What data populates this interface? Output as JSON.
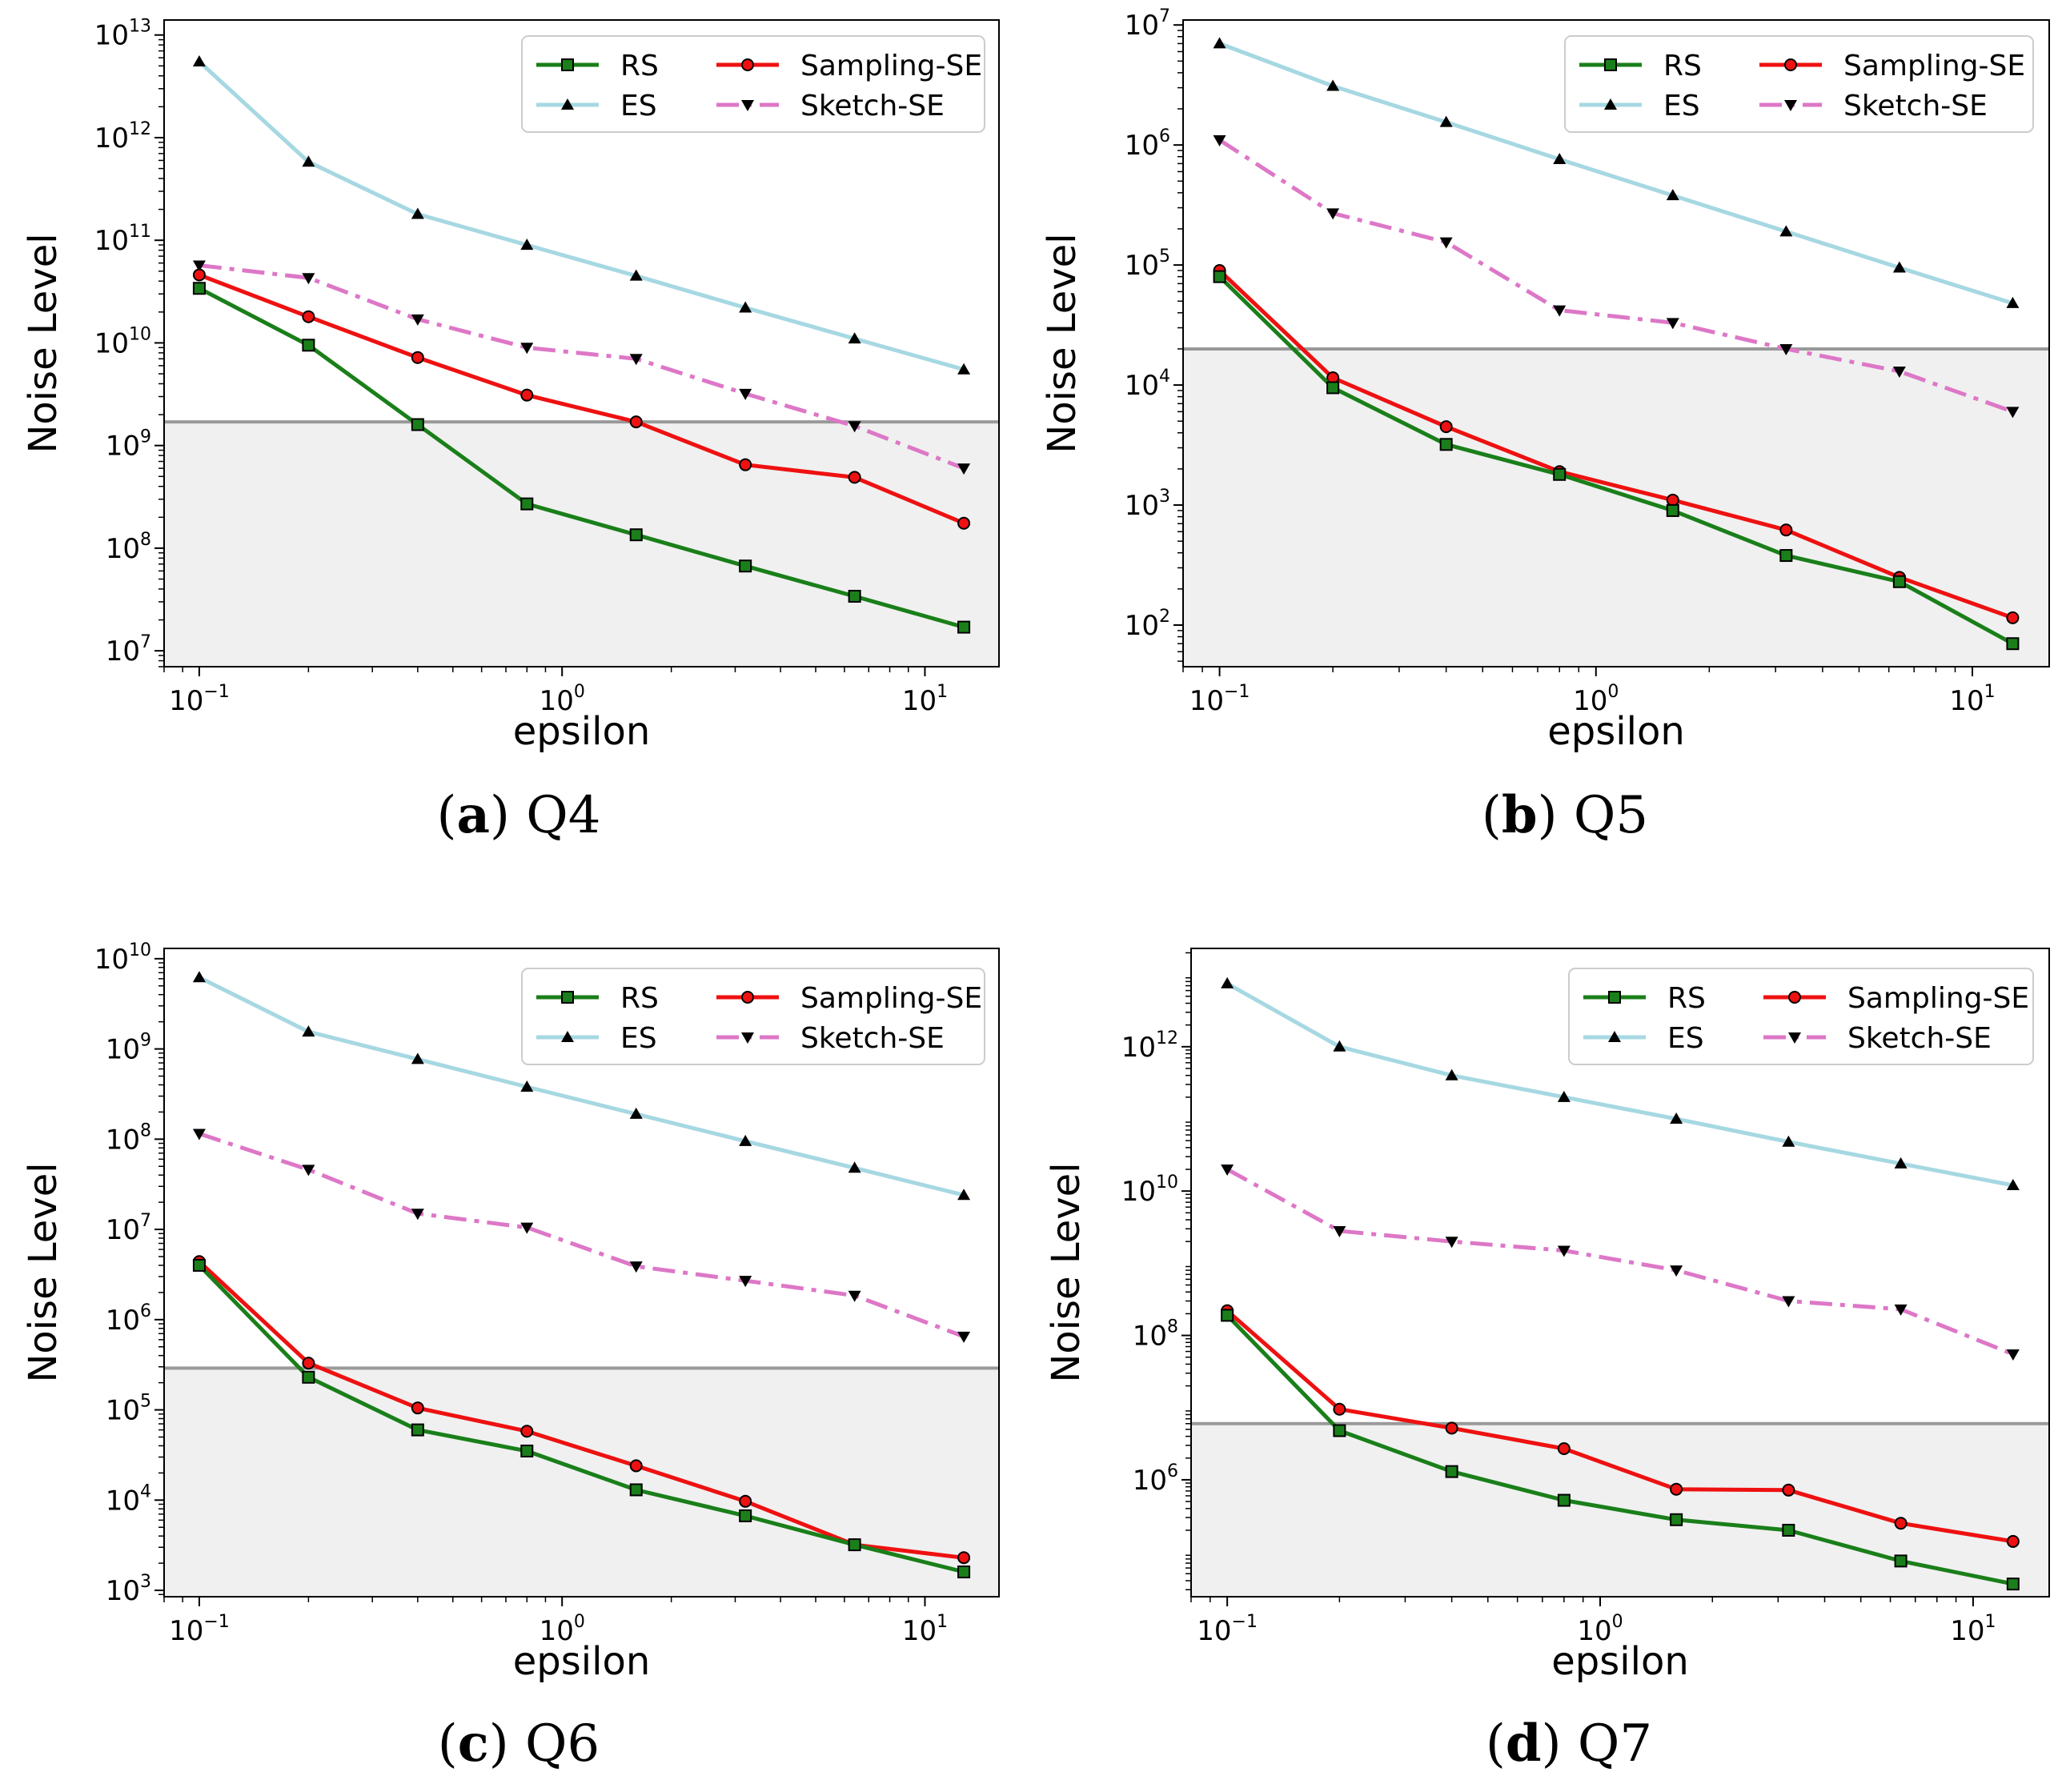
{
  "chart_data": [
    {
      "type": "line",
      "panel": "a",
      "caption_letter": "a",
      "caption_name": "Q4",
      "xlabel": "epsilon",
      "ylabel": "Noise Level",
      "xscale": "log",
      "yscale": "log",
      "xlim": [
        0.08,
        16
      ],
      "ylim": [
        7000000,
        14000000000000
      ],
      "xticks": [
        {
          "exp": "−1",
          "value": 0.1
        },
        {
          "exp": "0",
          "value": 1
        },
        {
          "exp": "1",
          "value": 10
        }
      ],
      "yticks": [
        {
          "exp": "7",
          "value": 10000000
        },
        {
          "exp": "8",
          "value": 100000000
        },
        {
          "exp": "9",
          "value": 1000000000
        },
        {
          "exp": "10",
          "value": 10000000000
        },
        {
          "exp": "11",
          "value": 100000000000
        },
        {
          "exp": "12",
          "value": 1000000000000
        },
        {
          "exp": "13",
          "value": 10000000000000
        }
      ],
      "threshold": 1700000000,
      "x": [
        0.1,
        0.2,
        0.4,
        0.8,
        1.6,
        3.2,
        6.4,
        12.8
      ],
      "series": [
        {
          "name": "RS",
          "values": [
            34000000000,
            9500000000,
            1600000000,
            270000000,
            135000000,
            67000000,
            34000000,
            17000000
          ]
        },
        {
          "name": "ES",
          "values": [
            5500000000000,
            580000000000,
            180000000000,
            90000000000,
            45000000000,
            22000000000,
            11000000000,
            5500000000
          ]
        },
        {
          "name": "Sampling-SE",
          "values": [
            46000000000,
            18000000000,
            7200000000,
            3100000000,
            1700000000,
            650000000,
            490000000,
            175000000
          ]
        },
        {
          "name": "Sketch-SE",
          "values": [
            57000000000,
            43000000000,
            17000000000,
            9000000000,
            7000000000,
            3200000000,
            1550000000,
            600000000
          ]
        }
      ]
    },
    {
      "type": "line",
      "panel": "b",
      "caption_letter": "b",
      "caption_name": "Q5",
      "xlabel": "epsilon",
      "ylabel": "Noise Level",
      "xscale": "log",
      "yscale": "log",
      "xlim": [
        0.08,
        16
      ],
      "ylim": [
        45,
        11000000
      ],
      "xticks": [
        {
          "exp": "−1",
          "value": 0.1
        },
        {
          "exp": "0",
          "value": 1
        },
        {
          "exp": "1",
          "value": 10
        }
      ],
      "yticks": [
        {
          "exp": "2",
          "value": 100
        },
        {
          "exp": "3",
          "value": 1000
        },
        {
          "exp": "4",
          "value": 10000
        },
        {
          "exp": "5",
          "value": 100000
        },
        {
          "exp": "6",
          "value": 1000000
        },
        {
          "exp": "7",
          "value": 10000000
        }
      ],
      "threshold": 20000,
      "x": [
        0.1,
        0.2,
        0.4,
        0.8,
        1.6,
        3.2,
        6.4,
        12.8
      ],
      "series": [
        {
          "name": "RS",
          "values": [
            80000,
            9500,
            3200,
            1800,
            900,
            380,
            230,
            70
          ]
        },
        {
          "name": "ES",
          "values": [
            7000000,
            3100000,
            1550000,
            760000,
            380000,
            190000,
            95000,
            48000
          ]
        },
        {
          "name": "Sampling-SE",
          "values": [
            90000,
            11500,
            4500,
            1900,
            1100,
            620,
            250,
            115
          ]
        },
        {
          "name": "Sketch-SE",
          "values": [
            1100000,
            270000,
            155000,
            42000,
            33000,
            20000,
            13000,
            6000
          ]
        }
      ]
    },
    {
      "type": "line",
      "panel": "c",
      "caption_letter": "c",
      "caption_name": "Q6",
      "xlabel": "epsilon",
      "ylabel": "Noise Level",
      "xscale": "log",
      "yscale": "log",
      "xlim": [
        0.08,
        16
      ],
      "ylim": [
        850,
        13000000000
      ],
      "xticks": [
        {
          "exp": "−1",
          "value": 0.1
        },
        {
          "exp": "0",
          "value": 1
        },
        {
          "exp": "1",
          "value": 10
        }
      ],
      "yticks": [
        {
          "exp": "3",
          "value": 1000
        },
        {
          "exp": "4",
          "value": 10000
        },
        {
          "exp": "5",
          "value": 100000
        },
        {
          "exp": "6",
          "value": 1000000
        },
        {
          "exp": "7",
          "value": 10000000
        },
        {
          "exp": "8",
          "value": 100000000
        },
        {
          "exp": "9",
          "value": 1000000000
        },
        {
          "exp": "10",
          "value": 10000000000
        }
      ],
      "threshold": 290000,
      "x": [
        0.1,
        0.2,
        0.4,
        0.8,
        1.6,
        3.2,
        6.4,
        12.8
      ],
      "series": [
        {
          "name": "RS",
          "values": [
            4000000,
            230000,
            60000,
            35000,
            13000,
            6700,
            3200,
            1600
          ]
        },
        {
          "name": "ES",
          "values": [
            6200000000,
            1550000000,
            770000000,
            380000000,
            190000000,
            95000000,
            48000000,
            24000000
          ]
        },
        {
          "name": "Sampling-SE",
          "values": [
            4400000,
            330000,
            105000,
            58000,
            24000,
            9700,
            3200,
            2300
          ]
        },
        {
          "name": "Sketch-SE",
          "values": [
            115000000,
            46000000,
            15000000,
            10500000,
            3900000,
            2700000,
            1850000,
            650000
          ]
        }
      ]
    },
    {
      "type": "line",
      "panel": "d",
      "caption_letter": "d",
      "caption_name": "Q7",
      "xlabel": "epsilon",
      "ylabel": "Noise Level",
      "xscale": "log",
      "yscale": "log",
      "xlim": [
        0.08,
        16
      ],
      "ylim": [
        24000,
        23000000000000
      ],
      "xticks": [
        {
          "exp": "−1",
          "value": 0.1
        },
        {
          "exp": "0",
          "value": 1
        },
        {
          "exp": "1",
          "value": 10
        }
      ],
      "yticks": [
        {
          "exp": "6",
          "value": 1000000
        },
        {
          "exp": "8",
          "value": 100000000
        },
        {
          "exp": "10",
          "value": 10000000000
        },
        {
          "exp": "12",
          "value": 1000000000000
        }
      ],
      "threshold": 6000000,
      "x": [
        0.1,
        0.2,
        0.4,
        0.8,
        1.6,
        3.2,
        6.4,
        12.8
      ],
      "series": [
        {
          "name": "RS",
          "values": [
            190000000,
            4800000,
            1300000,
            520000,
            280000,
            200000,
            75000,
            36000
          ]
        },
        {
          "name": "ES",
          "values": [
            7500000000000,
            1000000000000,
            400000000000,
            200000000000,
            100000000000,
            48000000000,
            24000000000,
            12000000000
          ]
        },
        {
          "name": "Sampling-SE",
          "values": [
            220000000,
            9500000,
            5200000,
            2700000,
            740000,
            720000,
            250000,
            140000
          ]
        },
        {
          "name": "Sketch-SE",
          "values": [
            20000000000,
            2800000000,
            2000000000,
            1500000000,
            800000000,
            300000000,
            230000000,
            55000000
          ]
        }
      ]
    }
  ],
  "series_styles": {
    "RS": {
      "color": "#1a7f1a",
      "marker": "square",
      "dashed": false
    },
    "ES": {
      "color": "#a6d8e2",
      "marker": "triangle-up",
      "dashed": false
    },
    "Sampling-SE": {
      "color": "#ee1111",
      "marker": "circle",
      "dashed": false
    },
    "Sketch-SE": {
      "color": "#dd77c7",
      "marker": "triangle-down",
      "dashed": true
    }
  },
  "shade_color": "#f0f0f0",
  "threshold_color": "#999999"
}
